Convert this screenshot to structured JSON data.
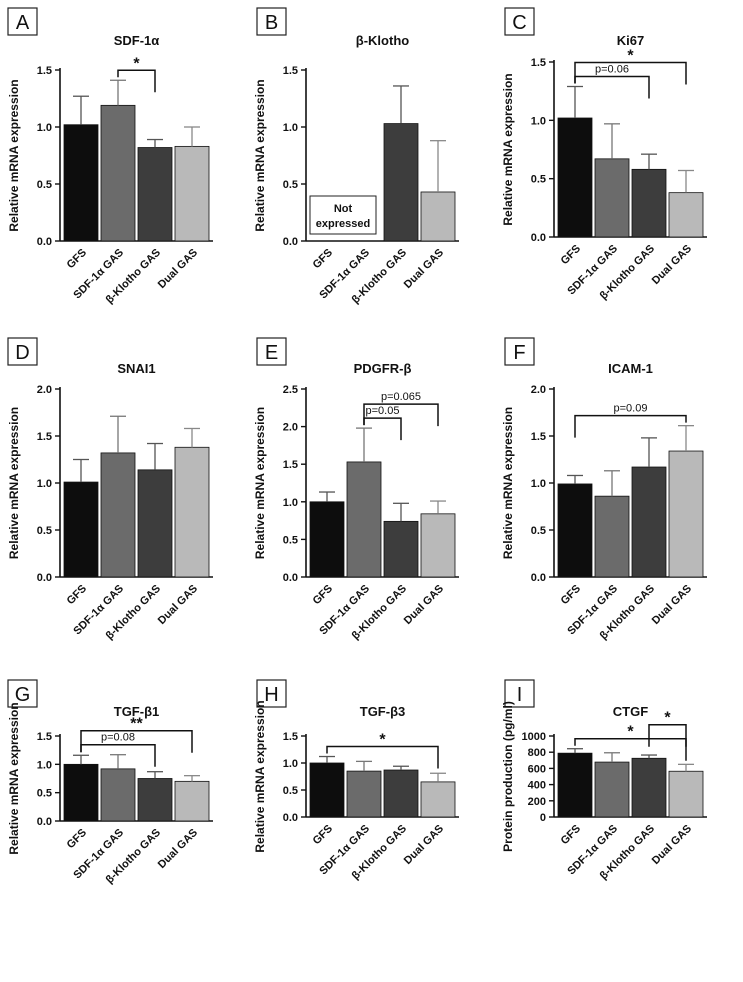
{
  "chart_data": [
    {
      "panel": "A",
      "type": "bar",
      "title": "SDF-1α",
      "ylabel": "Relative mRNA expression",
      "categories": [
        "GFS",
        "SDF-1α GAS",
        "β-Klotho GAS",
        "Dual GAS"
      ],
      "values": [
        1.02,
        1.19,
        0.82,
        0.83
      ],
      "errors": [
        0.25,
        0.22,
        0.07,
        0.17
      ],
      "ylim": [
        0,
        1.5
      ],
      "ticks": [
        "0.0",
        "0.5",
        "1.0",
        "1.5"
      ],
      "annotations": [
        {
          "from": 1,
          "to": 2,
          "label": "*"
        }
      ]
    },
    {
      "panel": "B",
      "type": "bar",
      "title": "β-Klotho",
      "ylabel": "Relative mRNA expression",
      "categories": [
        "GFS",
        "SDF-1α GAS",
        "β-Klotho GAS",
        "Dual GAS"
      ],
      "values": [
        0,
        0,
        1.03,
        0.43
      ],
      "errors": [
        0,
        0,
        0.33,
        0.45
      ],
      "ylim": [
        0,
        1.5
      ],
      "ticks": [
        "0.0",
        "0.5",
        "1.0",
        "1.5"
      ],
      "annotations": [],
      "note": [
        "Not",
        "expressed"
      ]
    },
    {
      "panel": "C",
      "type": "bar",
      "title": "Ki67",
      "ylabel": "Relative mRNA expression",
      "categories": [
        "GFS",
        "SDF-1α GAS",
        "β-Klotho GAS",
        "Dual GAS"
      ],
      "values": [
        1.02,
        0.67,
        0.58,
        0.38
      ],
      "errors": [
        0.27,
        0.3,
        0.13,
        0.19
      ],
      "ylim": [
        0,
        1.5
      ],
      "ticks": [
        "0.0",
        "0.5",
        "1.0",
        "1.5"
      ],
      "annotations": [
        {
          "from": 0,
          "to": 2,
          "label": "p=0.06"
        },
        {
          "from": 0,
          "to": 3,
          "label": "*"
        }
      ]
    },
    {
      "panel": "D",
      "type": "bar",
      "title": "SNAI1",
      "ylabel": "Relative mRNA expression",
      "categories": [
        "GFS",
        "SDF-1α GAS",
        "β-Klotho GAS",
        "Dual GAS"
      ],
      "values": [
        1.01,
        1.32,
        1.14,
        1.38
      ],
      "errors": [
        0.24,
        0.39,
        0.28,
        0.2
      ],
      "ylim": [
        0,
        2.0
      ],
      "ticks": [
        "0.0",
        "0.5",
        "1.0",
        "1.5",
        "2.0"
      ],
      "annotations": []
    },
    {
      "panel": "E",
      "type": "bar",
      "title": "PDGFR-β",
      "ylabel": "Relative mRNA expression",
      "categories": [
        "GFS",
        "SDF-1α GAS",
        "β-Klotho GAS",
        "Dual GAS"
      ],
      "values": [
        1.0,
        1.53,
        0.74,
        0.84
      ],
      "errors": [
        0.13,
        0.45,
        0.24,
        0.17
      ],
      "ylim": [
        0,
        2.5
      ],
      "ticks": [
        "0.0",
        "0.5",
        "1.0",
        "1.5",
        "2.0",
        "2.5"
      ],
      "annotations": [
        {
          "from": 1,
          "to": 2,
          "label": "p=0.05"
        },
        {
          "from": 1,
          "to": 3,
          "label": "p=0.065"
        }
      ]
    },
    {
      "panel": "F",
      "type": "bar",
      "title": "ICAM-1",
      "ylabel": "Relative mRNA expression",
      "categories": [
        "GFS",
        "SDF-1α GAS",
        "β-Klotho GAS",
        "Dual GAS"
      ],
      "values": [
        0.99,
        0.86,
        1.17,
        1.34
      ],
      "errors": [
        0.09,
        0.27,
        0.31,
        0.27
      ],
      "ylim": [
        0,
        2.0
      ],
      "ticks": [
        "0.0",
        "0.5",
        "1.0",
        "1.5",
        "2.0"
      ],
      "annotations": [
        {
          "from": 0,
          "to": 3,
          "label": "p=0.09"
        }
      ]
    },
    {
      "panel": "G",
      "type": "bar",
      "title": "TGF-β1",
      "ylabel": "Relative mRNA expression",
      "categories": [
        "GFS",
        "SDF-1α GAS",
        "β-Klotho GAS",
        "Dual GAS"
      ],
      "values": [
        1.0,
        0.92,
        0.75,
        0.7
      ],
      "errors": [
        0.16,
        0.25,
        0.12,
        0.1
      ],
      "ylim": [
        0,
        1.5
      ],
      "ticks": [
        "0.0",
        "0.5",
        "1.0",
        "1.5"
      ],
      "annotations": [
        {
          "from": 0,
          "to": 2,
          "label": "p=0.08"
        },
        {
          "from": 0,
          "to": 3,
          "label": "**"
        }
      ]
    },
    {
      "panel": "H",
      "type": "bar",
      "title": "TGF-β3",
      "ylabel": "Relative mRNA expression",
      "categories": [
        "GFS",
        "SDF-1α GAS",
        "β-Klotho GAS",
        "Dual GAS"
      ],
      "values": [
        1.0,
        0.85,
        0.87,
        0.65
      ],
      "errors": [
        0.12,
        0.18,
        0.07,
        0.16
      ],
      "ylim": [
        0,
        1.5
      ],
      "ticks": [
        "0.0",
        "0.5",
        "1.0",
        "1.5"
      ],
      "annotations": [
        {
          "from": 0,
          "to": 3,
          "label": "*"
        }
      ]
    },
    {
      "panel": "I",
      "type": "bar",
      "title": "CTGF",
      "ylabel": "Protein production (pg/ml)",
      "categories": [
        "GFS",
        "SDF-1α GAS",
        "β-Klotho GAS",
        "Dual GAS"
      ],
      "values": [
        788,
        678,
        725,
        565
      ],
      "errors": [
        55,
        115,
        40,
        85
      ],
      "ylim": [
        0,
        1000
      ],
      "ticks": [
        "0",
        "200",
        "400",
        "600",
        "800",
        "1000"
      ],
      "annotations": [
        {
          "from": 0,
          "to": 3,
          "label": "*"
        },
        {
          "from": 2,
          "to": 3,
          "label": "*"
        }
      ]
    }
  ],
  "colors": {
    "bars": [
      "#0d0d0d",
      "#6b6b6b",
      "#3d3d3d",
      "#b9b9b9"
    ],
    "axis": "#111111",
    "errorbars": [
      "#555555",
      "#777777",
      "#555555",
      "#888888"
    ]
  }
}
